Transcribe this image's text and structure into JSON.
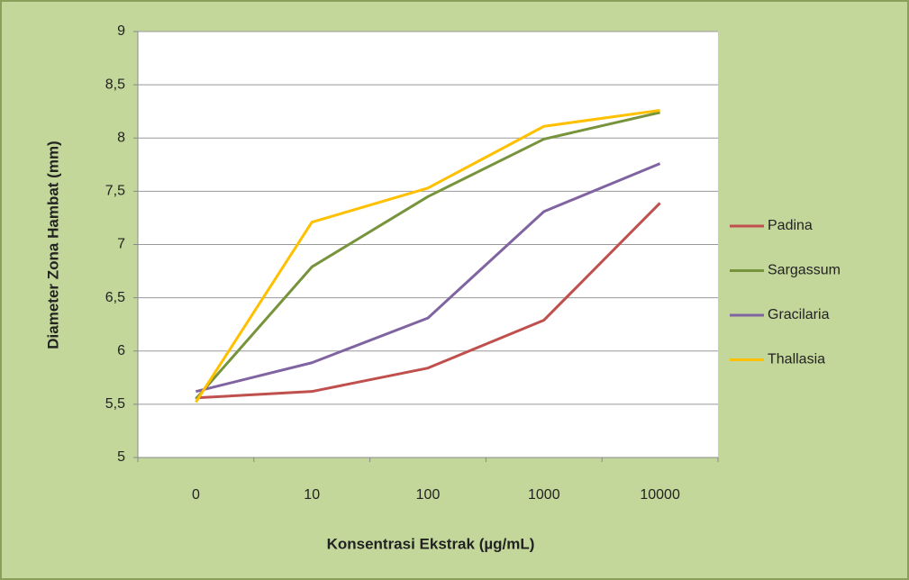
{
  "chart_data": {
    "type": "line",
    "categories": [
      "0",
      "10",
      "100",
      "1000",
      "10000"
    ],
    "series": [
      {
        "name": "Padina",
        "color": "#c0504d",
        "values": [
          5.56,
          5.62,
          5.84,
          6.29,
          7.39
        ]
      },
      {
        "name": "Sargassum",
        "color": "#77933c",
        "values": [
          5.55,
          6.79,
          7.45,
          7.99,
          8.24
        ]
      },
      {
        "name": "Gracilaria",
        "color": "#8064a2",
        "values": [
          5.62,
          5.89,
          6.31,
          7.31,
          7.76
        ]
      },
      {
        "name": "Thallasia",
        "color": "#ffc000",
        "values": [
          5.52,
          7.21,
          7.53,
          8.11,
          8.26
        ]
      }
    ],
    "x_label": "Konsentrasi Ekstrak (µg/mL)",
    "y_label": "Diameter Zona Hambat (mm)",
    "ylim": [
      5,
      9
    ],
    "yticks": [
      5,
      {
        "value": 5.5,
        "label": "5,5"
      },
      6,
      {
        "value": 6.5,
        "label": "6,5"
      },
      7,
      {
        "value": 7.5,
        "label": "7,5"
      },
      8,
      {
        "value": 8.5,
        "label": "8,5"
      },
      9
    ],
    "grid": true,
    "legend": "right"
  }
}
